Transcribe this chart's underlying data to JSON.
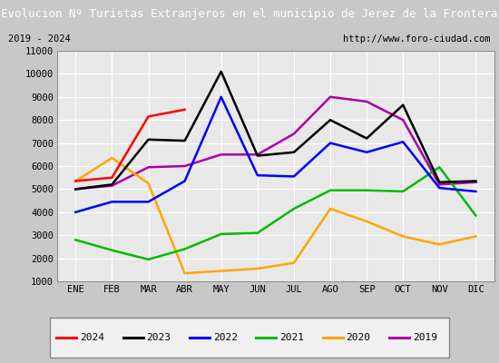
{
  "title": "Evolucion Nº Turistas Extranjeros en el municipio de Jerez de la Frontera",
  "subtitle_left": "2019 - 2024",
  "subtitle_right": "http://www.foro-ciudad.com",
  "title_bg_color": "#4472c4",
  "title_text_color": "#ffffff",
  "months": [
    "ENE",
    "FEB",
    "MAR",
    "ABR",
    "MAY",
    "JUN",
    "JUL",
    "AGO",
    "SEP",
    "OCT",
    "NOV",
    "DIC"
  ],
  "series": {
    "2024": [
      5350,
      5500,
      8150,
      8450,
      null,
      null,
      null,
      null,
      null,
      null,
      null,
      null
    ],
    "2023": [
      5000,
      5200,
      7150,
      7100,
      10100,
      6450,
      6600,
      8000,
      7200,
      8650,
      5300,
      5350
    ],
    "2022": [
      4000,
      4450,
      4450,
      5350,
      9000,
      5600,
      5550,
      7000,
      6600,
      7050,
      5050,
      4900
    ],
    "2021": [
      2800,
      2350,
      1950,
      2400,
      3050,
      3100,
      4150,
      4950,
      4950,
      4900,
      5950,
      3850
    ],
    "2020": [
      5350,
      6350,
      5250,
      1350,
      1450,
      1550,
      1800,
      4150,
      3600,
      2950,
      2600,
      2950
    ],
    "2019": [
      5000,
      5150,
      5950,
      6000,
      6500,
      6500,
      7400,
      9000,
      8800,
      8000,
      5200,
      5300
    ]
  },
  "colors": {
    "2024": "#ff0000",
    "2023": "#000000",
    "2022": "#0000ff",
    "2021": "#00bb00",
    "2020": "#ffa500",
    "2019": "#aa00aa"
  },
  "ylim": [
    1000,
    11000
  ],
  "yticks": [
    1000,
    2000,
    3000,
    4000,
    5000,
    6000,
    7000,
    8000,
    9000,
    10000,
    11000
  ],
  "outer_bg": "#c8c8c8",
  "plot_bg_color": "#e8e8e8",
  "grid_color": "#ffffff",
  "legend_order": [
    "2024",
    "2023",
    "2022",
    "2021",
    "2020",
    "2019"
  ]
}
